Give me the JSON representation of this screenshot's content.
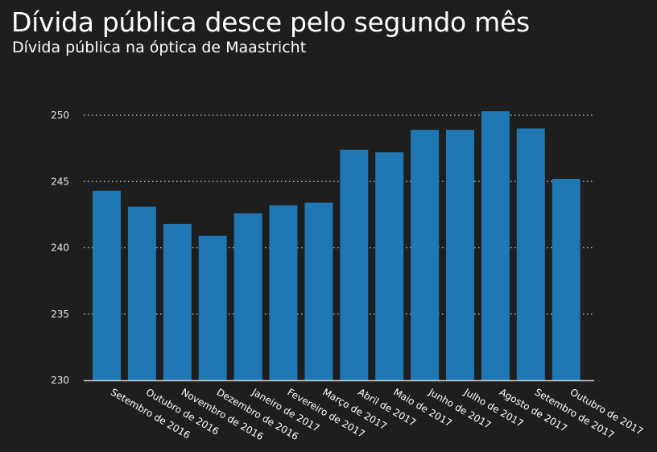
{
  "header": {
    "title": "Dívida pública desce pelo segundo mês",
    "subtitle": "Dívida pública na óptica de Maastricht"
  },
  "colors": {
    "background": "#1e1e1e",
    "bar": "#1f77b4",
    "grid": "#cfcfcf",
    "axis": "#cfcfcf"
  },
  "chart_data": {
    "type": "bar",
    "title": "Dívida pública desce pelo segundo mês",
    "subtitle": "Dívida pública na óptica de Maastricht",
    "xlabel": "",
    "ylabel": "",
    "ylim": [
      230,
      251
    ],
    "yticks": [
      230,
      235,
      240,
      245,
      250
    ],
    "grid": "horizontal-dotted",
    "categories": [
      "Setembro de 2016",
      "Outubro de 2016",
      "Novembro de 2016",
      "Dezembro de 2016",
      "Janeiro de 2017",
      "Fevereiro de 2017",
      "Março de 2017",
      "Abril de 2017",
      "Maio de 2017",
      "Junho de 2017",
      "Julho de 2017",
      "Agosto de 2017",
      "Setembro de 2017",
      "Outubro de 2017"
    ],
    "values": [
      244.3,
      243.1,
      241.8,
      240.9,
      242.6,
      243.2,
      243.4,
      247.4,
      247.2,
      248.9,
      248.9,
      250.3,
      249.0,
      245.2
    ]
  }
}
